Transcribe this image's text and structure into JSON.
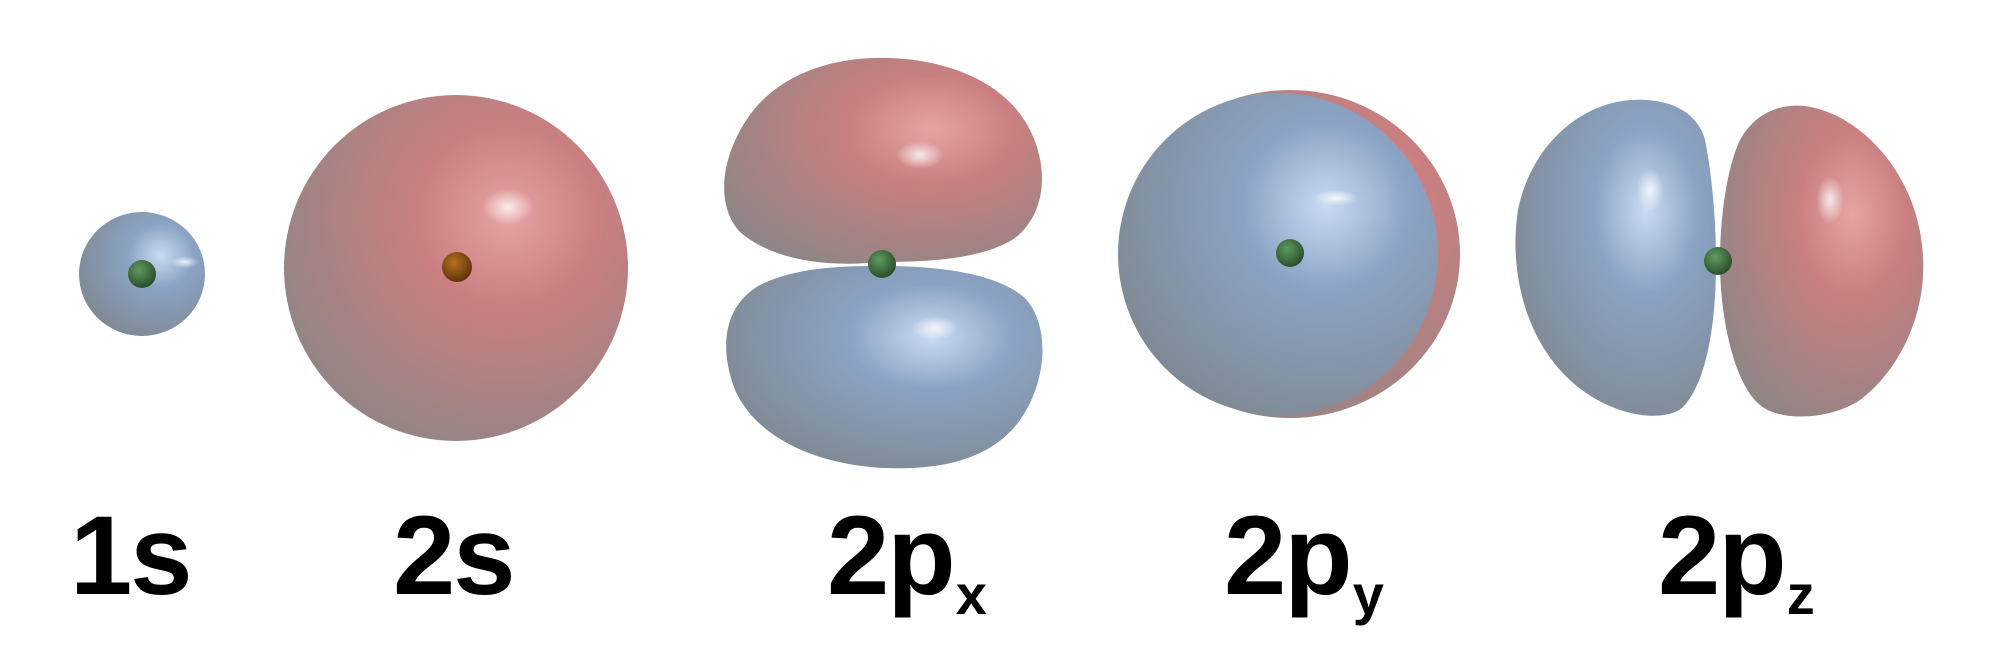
{
  "colors": {
    "positive_phase": "#c97f80",
    "negative_phase": "#8aa3c4",
    "nucleus": "#3a6b3a",
    "nucleus_in_red": "#8a4a12",
    "label_text": "#000000"
  },
  "orbitals": [
    {
      "id": "1s",
      "shape": "sphere",
      "phases": [
        "negative"
      ],
      "label": {
        "main": "1s",
        "sub": ""
      }
    },
    {
      "id": "2s",
      "shape": "sphere",
      "phases": [
        "positive"
      ],
      "label": {
        "main": "2s",
        "sub": ""
      }
    },
    {
      "id": "2px",
      "shape": "dumbbell-vertical",
      "phases": [
        "positive",
        "negative"
      ],
      "label": {
        "main": "2p",
        "sub": "x"
      }
    },
    {
      "id": "2py",
      "shape": "dumbbell-toward-viewer",
      "phases": [
        "negative",
        "positive"
      ],
      "label": {
        "main": "2p",
        "sub": "y"
      }
    },
    {
      "id": "2pz",
      "shape": "dumbbell-horizontal",
      "phases": [
        "negative",
        "positive"
      ],
      "label": {
        "main": "2p",
        "sub": "z"
      }
    }
  ]
}
